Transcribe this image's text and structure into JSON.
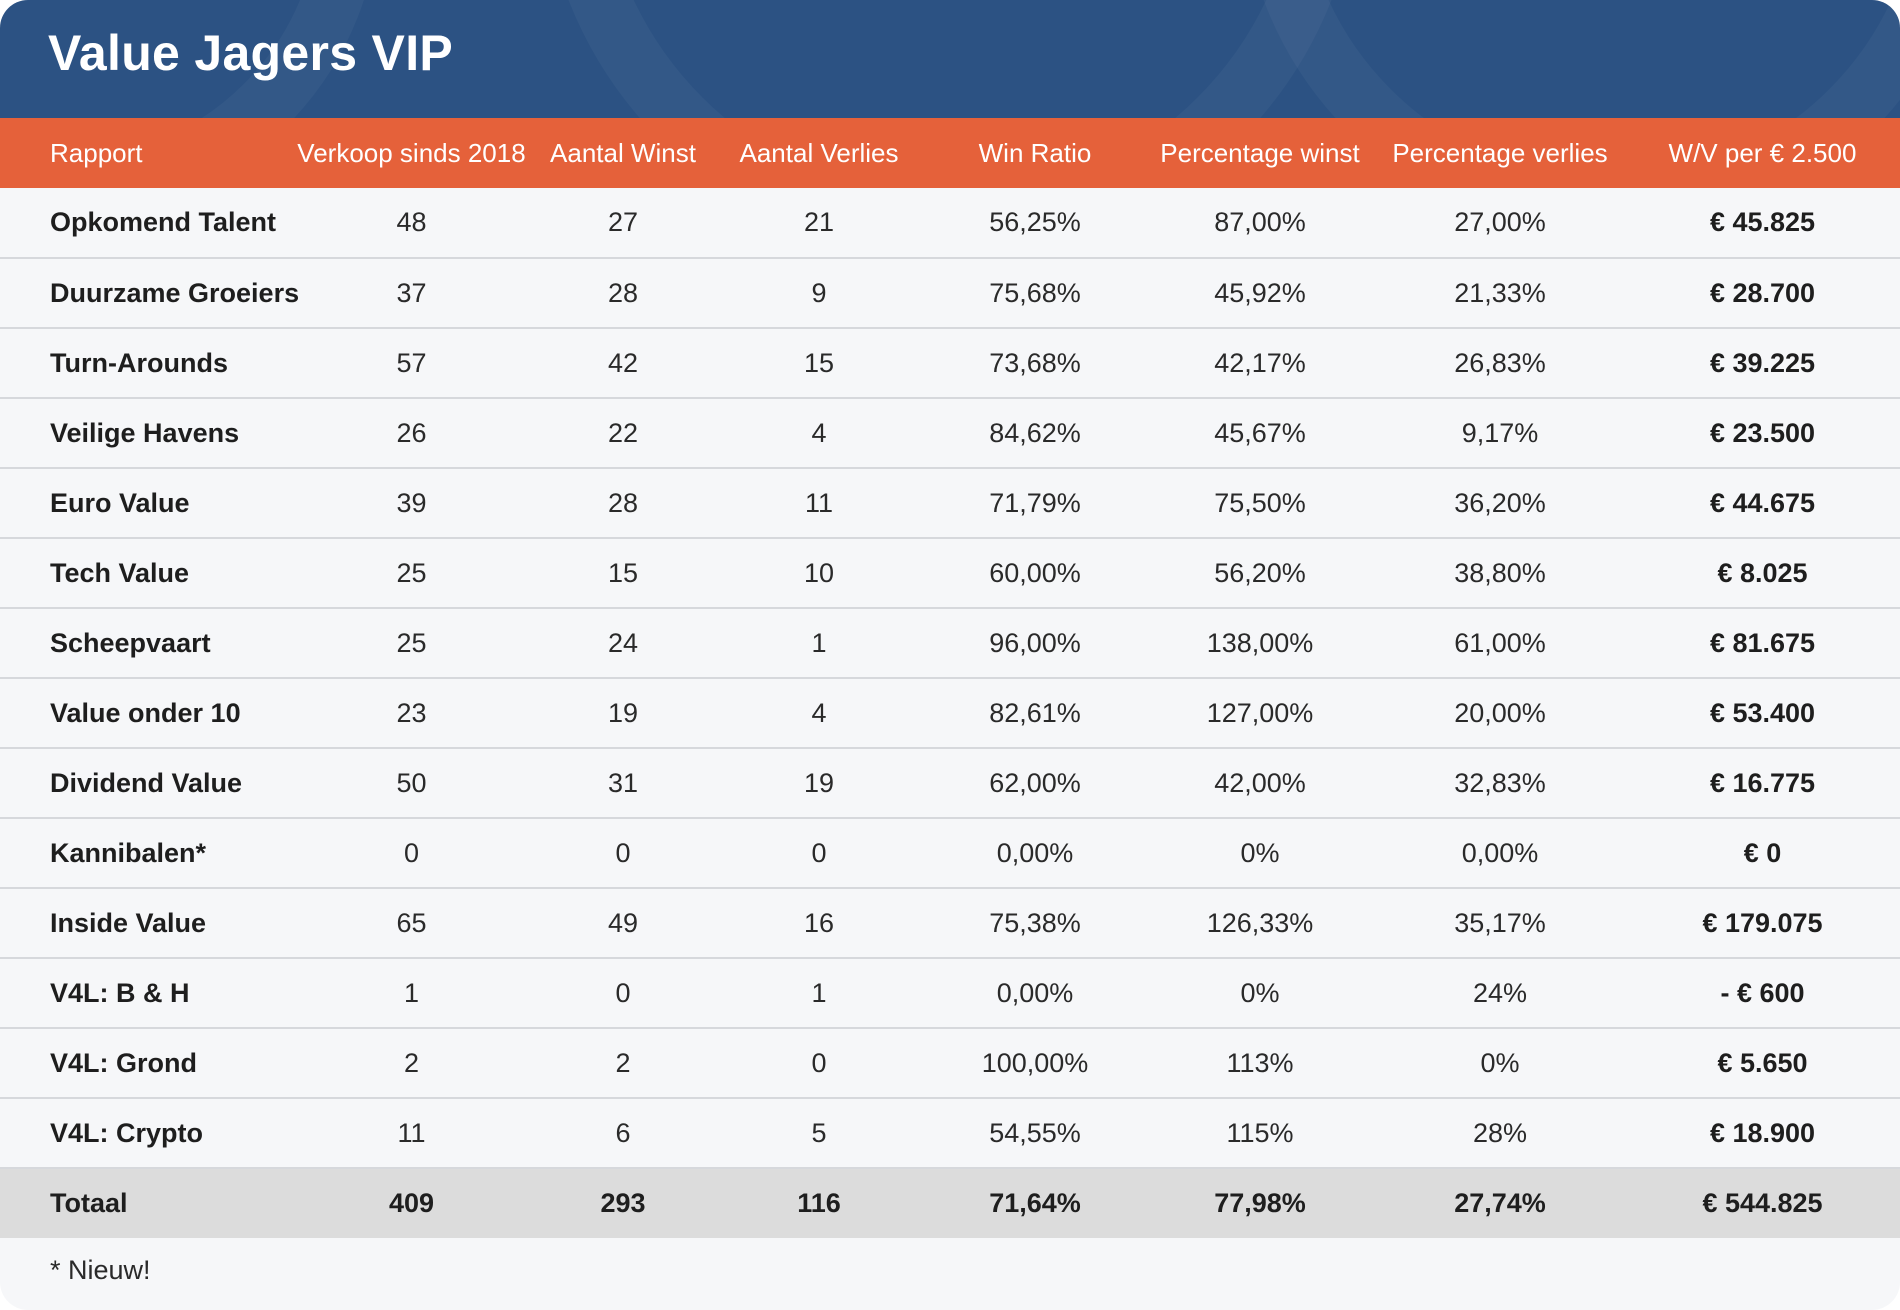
{
  "title": "Value Jagers VIP",
  "colors": {
    "header_bg": "#2c5283",
    "column_header_bg": "#e5613a",
    "row_bg": "#f6f7f9",
    "total_row_bg": "#dcdcdc"
  },
  "columns": [
    "Rapport",
    "Verkoop sinds 2018",
    "Aantal Winst",
    "Aantal Verlies",
    "Win Ratio",
    "Percentage winst",
    "Percentage verlies",
    "W/V per € 2.500"
  ],
  "rows": [
    [
      "Opkomend Talent",
      "48",
      "27",
      "21",
      "56,25%",
      "87,00%",
      "27,00%",
      "€ 45.825"
    ],
    [
      "Duurzame Groeiers",
      "37",
      "28",
      "9",
      "75,68%",
      "45,92%",
      "21,33%",
      "€ 28.700"
    ],
    [
      "Turn-Arounds",
      "57",
      "42",
      "15",
      "73,68%",
      "42,17%",
      "26,83%",
      "€ 39.225"
    ],
    [
      "Veilige Havens",
      "26",
      "22",
      "4",
      "84,62%",
      "45,67%",
      "9,17%",
      "€ 23.500"
    ],
    [
      "Euro Value",
      "39",
      "28",
      "11",
      "71,79%",
      "75,50%",
      "36,20%",
      "€ 44.675"
    ],
    [
      "Tech Value",
      "25",
      "15",
      "10",
      "60,00%",
      "56,20%",
      "38,80%",
      "€ 8.025"
    ],
    [
      "Scheepvaart",
      "25",
      "24",
      "1",
      "96,00%",
      "138,00%",
      "61,00%",
      "€ 81.675"
    ],
    [
      "Value onder 10",
      "23",
      "19",
      "4",
      "82,61%",
      "127,00%",
      "20,00%",
      "€ 53.400"
    ],
    [
      "Dividend Value",
      "50",
      "31",
      "19",
      "62,00%",
      "42,00%",
      "32,83%",
      "€ 16.775"
    ],
    [
      "Kannibalen*",
      "0",
      "0",
      "0",
      "0,00%",
      "0%",
      "0,00%",
      "€ 0"
    ],
    [
      "Inside Value",
      "65",
      "49",
      "16",
      "75,38%",
      "126,33%",
      "35,17%",
      "€ 179.075"
    ],
    [
      "V4L: B & H",
      "1",
      "0",
      "1",
      "0,00%",
      "0%",
      "24%",
      "- € 600"
    ],
    [
      "V4L: Grond",
      "2",
      "2",
      "0",
      "100,00%",
      "113%",
      "0%",
      "€ 5.650"
    ],
    [
      "V4L: Crypto",
      "11",
      "6",
      "5",
      "54,55%",
      "115%",
      "28%",
      "€ 18.900"
    ]
  ],
  "total": [
    "Totaal",
    "409",
    "293",
    "116",
    "71,64%",
    "77,98%",
    "27,74%",
    "€ 544.825"
  ],
  "footnote": "* Nieuw!"
}
